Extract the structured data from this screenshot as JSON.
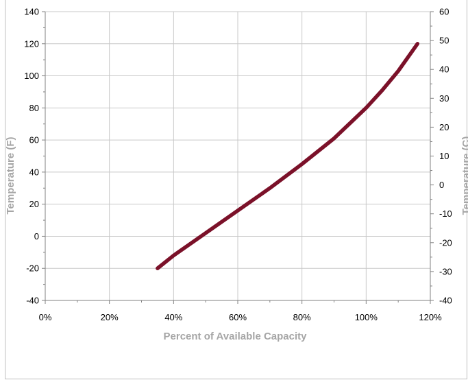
{
  "chart_data": {
    "type": "line",
    "title": "",
    "xlabel": "Percent of Available Capacity",
    "ylabel": "Temperature (F)",
    "y2label": "Temperature (C)",
    "xlim": [
      0,
      120
    ],
    "ylim": [
      -40,
      140
    ],
    "y2lim": [
      -40,
      60
    ],
    "xticks": [
      "0%",
      "20%",
      "40%",
      "60%",
      "80%",
      "100%",
      "120%"
    ],
    "xtick_values": [
      0,
      20,
      40,
      60,
      80,
      100,
      120
    ],
    "yticks": [
      "-40",
      "-20",
      "0",
      "20",
      "40",
      "60",
      "80",
      "100",
      "120",
      "140"
    ],
    "ytick_values": [
      -40,
      -20,
      0,
      20,
      40,
      60,
      80,
      100,
      120,
      140
    ],
    "y2ticks": [
      "-40",
      "-30",
      "-20",
      "-10",
      "0",
      "10",
      "20",
      "30",
      "40",
      "50",
      "60"
    ],
    "y2tick_values": [
      -40,
      -30,
      -20,
      -10,
      0,
      10,
      20,
      30,
      40,
      50,
      60
    ],
    "grid": true,
    "legend": "none",
    "series": [
      {
        "color": "#7b1129",
        "x": [
          35,
          40,
          50,
          60,
          70,
          80,
          90,
          100,
          105,
          110,
          116
        ],
        "y": [
          -20,
          -12,
          2,
          16,
          30,
          45,
          61,
          80,
          91,
          103,
          120
        ]
      }
    ]
  }
}
